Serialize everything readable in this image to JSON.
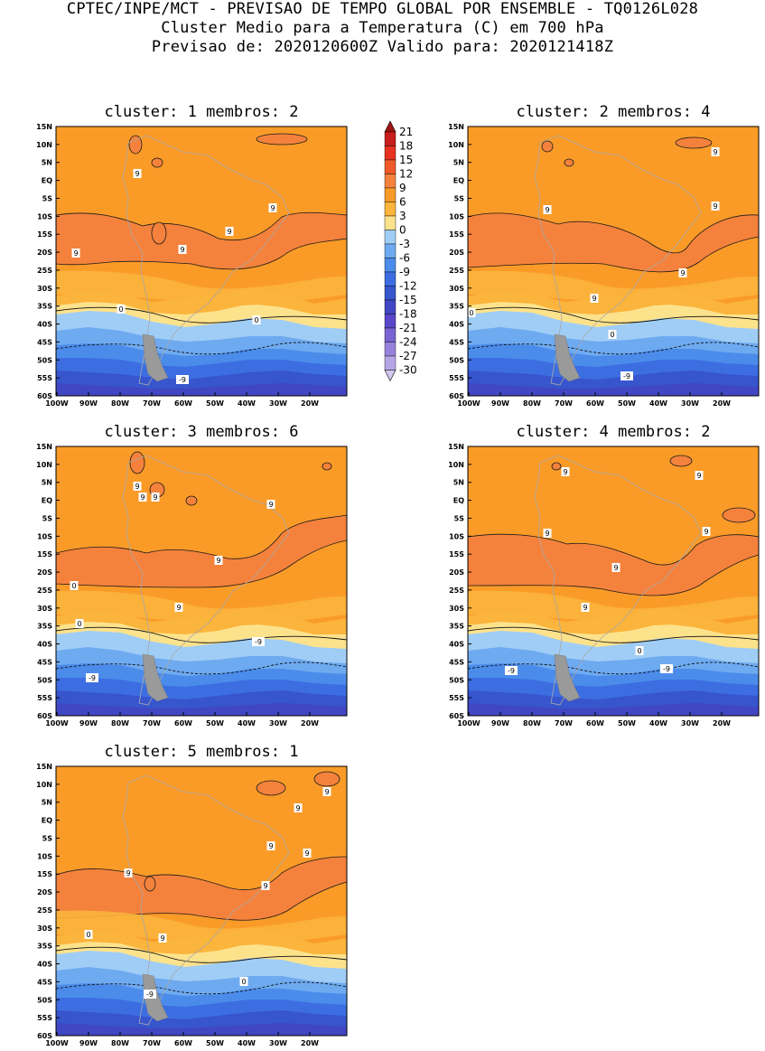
{
  "header": {
    "line1": "CPTEC/INPE/MCT - PREVISAO DE TEMPO GLOBAL POR ENSEMBLE - TQ0126L028",
    "line2": "Cluster Medio para a Temperatura (C) em 700 hPa",
    "line3": "Previsao de: 2020120600Z   Valido para: 2020121418Z"
  },
  "lat_ticks": [
    "15N",
    "10N",
    "5N",
    "EQ",
    "5S",
    "10S",
    "15S",
    "20S",
    "25S",
    "30S",
    "35S",
    "40S",
    "45S",
    "50S",
    "55S",
    "60S"
  ],
  "lon_ticks": [
    "100W",
    "90W",
    "80W",
    "70W",
    "60W",
    "50W",
    "40W",
    "30W",
    "20W"
  ],
  "colorbar": {
    "labels": [
      "21",
      "18",
      "15",
      "12",
      "9",
      "6",
      "3",
      "0",
      "-3",
      "-6",
      "-9",
      "-12",
      "-15",
      "-18",
      "-21",
      "-24",
      "-27",
      "-30"
    ],
    "colors": [
      "#a01414",
      "#c81e1e",
      "#e6321e",
      "#f05a28",
      "#f5823c",
      "#fa9b28",
      "#fbb43c",
      "#fde28c",
      "#a0cdf5",
      "#6eaaf0",
      "#4b8ceb",
      "#3c6ee1",
      "#3755cd",
      "#4146c3",
      "#5a46c8",
      "#7864d2",
      "#9682dc",
      "#b4a5e6",
      "#d2c8f0"
    ]
  },
  "panels": [
    {
      "title": "cluster: 1   membros: 2",
      "labels": [
        "9",
        "9",
        "9",
        "9",
        "9",
        "0",
        "0",
        "-9"
      ]
    },
    {
      "title": "cluster: 2   membros: 4",
      "labels": [
        "9",
        "9",
        "9",
        "9",
        "9",
        "0",
        "0",
        "-9"
      ]
    },
    {
      "title": "cluster: 3   membros: 6",
      "labels": [
        "9",
        "9",
        "9",
        "9",
        "9",
        "9",
        "0",
        "0",
        "-9",
        "-9"
      ]
    },
    {
      "title": "cluster: 4   membros: 2",
      "labels": [
        "9",
        "9",
        "9",
        "9",
        "9",
        "9",
        "0",
        "-9",
        "-9"
      ]
    },
    {
      "title": "cluster: 5   membros: 1",
      "labels": [
        "9",
        "9",
        "9",
        "9",
        "9",
        "9",
        "9",
        "0",
        "0",
        "-9"
      ]
    }
  ]
}
